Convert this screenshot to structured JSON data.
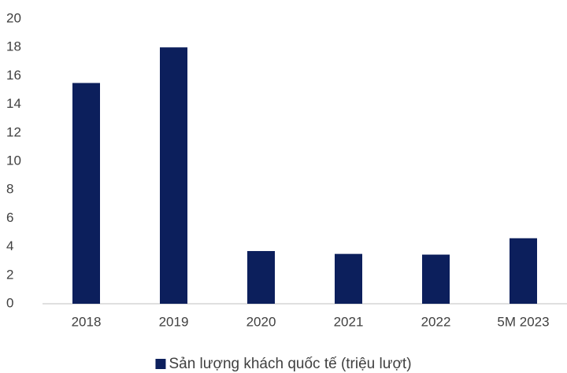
{
  "chart_data": {
    "type": "bar",
    "categories": [
      "2018",
      "2019",
      "2020",
      "2021",
      "2022",
      "5M 2023"
    ],
    "series": [
      {
        "name": "Sản lượng khách quốc tế (triệu lượt)",
        "color": "#0c1f5c",
        "values": [
          15.5,
          18.0,
          3.7,
          3.5,
          3.45,
          4.6
        ]
      }
    ],
    "ylim": [
      0,
      20
    ],
    "yticks": [
      0,
      2,
      4,
      6,
      8,
      10,
      12,
      14,
      16,
      18,
      20
    ],
    "grid": false,
    "legend": "bottom"
  }
}
